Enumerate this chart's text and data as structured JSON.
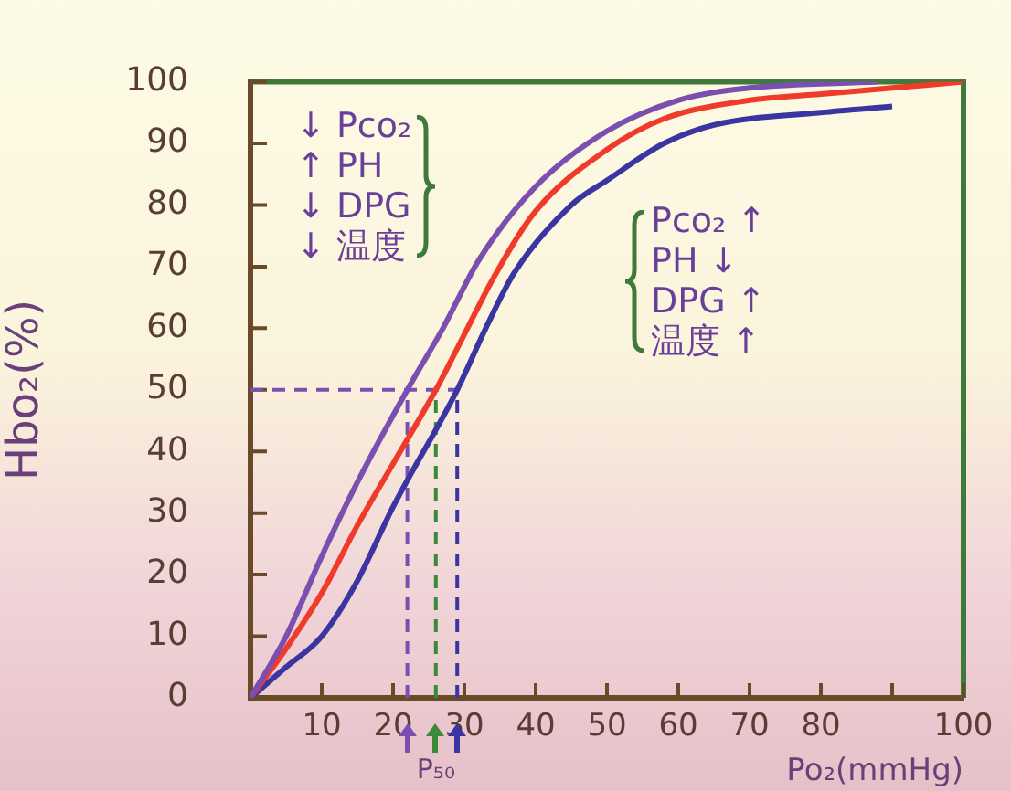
{
  "chart_data": {
    "type": "line",
    "xlabel": "Po₂(mmHg)",
    "ylabel": "Hbo₂(%)",
    "xlim": [
      0,
      100
    ],
    "ylim": [
      0,
      100
    ],
    "xticks": [
      10,
      20,
      30,
      40,
      50,
      60,
      70,
      80,
      {
        "value": 90,
        "label": null
      },
      100
    ],
    "yticks": [
      0,
      10,
      20,
      30,
      40,
      50,
      60,
      70,
      80,
      90,
      100
    ],
    "grid": false,
    "legend": false,
    "marker": "none",
    "line_style": "solid",
    "series": [
      {
        "color": "#7a4fb0",
        "x": [
          0,
          5,
          10,
          15,
          22,
          27,
          32,
          40,
          50,
          60,
          70,
          88
        ],
        "values": [
          0,
          10,
          23,
          35,
          50,
          60,
          71,
          83,
          92,
          97,
          99,
          100
        ]
      },
      {
        "color": "#f03a2a",
        "x": [
          0,
          5,
          10,
          15,
          20,
          26,
          30,
          34,
          40,
          50,
          58,
          70,
          80,
          90,
          100
        ],
        "values": [
          0,
          8,
          17,
          28,
          38,
          50,
          59,
          68,
          79,
          89,
          94,
          97,
          98,
          99,
          100
        ]
      },
      {
        "color": "#3a35a0",
        "x": [
          0,
          5,
          10,
          15,
          20,
          29,
          33,
          37,
          45,
          50,
          58,
          65,
          80,
          90
        ],
        "values": [
          0,
          5,
          10,
          19,
          31,
          50,
          60,
          69,
          80,
          84,
          90,
          93,
          95,
          96
        ]
      }
    ],
    "ref_lines": [
      {
        "axis": "y",
        "value": 50,
        "color": "#7a4fb0",
        "line_style": "dashed"
      },
      {
        "axis": "x",
        "value": 22,
        "color": "#7a4fb0",
        "line_style": "dashed"
      },
      {
        "axis": "x",
        "value": 26,
        "color": "#3a8a3a",
        "line_style": "dashed"
      },
      {
        "axis": "x",
        "value": 29,
        "color": "#3a35a0",
        "line_style": "dashed"
      }
    ],
    "annotations": [
      "↓ Pco₂\n↑ PH\n↓ DPG\n↓ 温度",
      "Pco₂ ↑\nPH ↓\nDPG ↑\n温度 ↑",
      {
        "text": "P₅₀",
        "x": 26,
        "y": 0
      }
    ]
  }
}
